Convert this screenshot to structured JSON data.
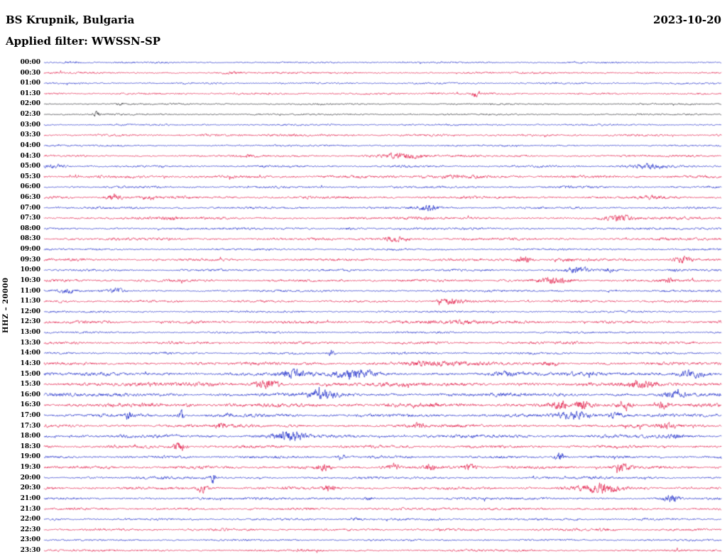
{
  "header": {
    "station": "BS Krupnik, Bulgaria",
    "filter_label": "Applied filter: WWSSN-SP",
    "date": "2023-10-20",
    "channel_scale": "HHZ – 20000"
  },
  "chart_data": {
    "type": "line",
    "subtype": "helicorder-seismogram",
    "title": "BS Krupnik, Bulgaria",
    "date": "2023-10-20",
    "filter": "WWSSN-SP",
    "ylabel": "HHZ – 20000",
    "xlabel": "",
    "row_duration_minutes": 30,
    "num_rows": 48,
    "grid": false,
    "legend": "none",
    "palette": {
      "blue": "#0a18c4",
      "red": "#e00d3c",
      "black": "#15151a"
    },
    "rows": [
      {
        "label": "00:00",
        "color": "blue",
        "base": 0.8,
        "events": [
          [
            0.04,
            0.008,
            1.2
          ]
        ]
      },
      {
        "label": "00:30",
        "color": "red",
        "base": 0.9,
        "events": [
          [
            0.28,
            0.01,
            1.0
          ],
          [
            0.88,
            0.01,
            0.8
          ]
        ]
      },
      {
        "label": "01:00",
        "color": "blue",
        "base": 0.8,
        "events": []
      },
      {
        "label": "01:30",
        "color": "red",
        "base": 0.9,
        "events": [
          [
            0.58,
            0.006,
            1.2
          ],
          [
            0.637,
            0.0035,
            3.5
          ]
        ]
      },
      {
        "label": "02:00",
        "color": "black",
        "base": 0.7,
        "events": [
          [
            0.113,
            0.004,
            1.5
          ]
        ]
      },
      {
        "label": "02:30",
        "color": "black",
        "base": 0.7,
        "events": [
          [
            0.077,
            0.0035,
            3.5
          ]
        ]
      },
      {
        "label": "03:00",
        "color": "blue",
        "base": 0.8,
        "events": []
      },
      {
        "label": "03:30",
        "color": "red",
        "base": 1.0,
        "events": [
          [
            0.35,
            0.02,
            0.8
          ]
        ]
      },
      {
        "label": "04:00",
        "color": "blue",
        "base": 0.8,
        "events": []
      },
      {
        "label": "04:30",
        "color": "red",
        "base": 1.0,
        "events": [
          [
            0.3,
            0.008,
            1.0
          ],
          [
            0.527,
            0.025,
            2.8
          ]
        ]
      },
      {
        "label": "05:00",
        "color": "blue",
        "base": 1.0,
        "events": [
          [
            0.015,
            0.012,
            1.8
          ],
          [
            0.89,
            0.02,
            2.2
          ]
        ]
      },
      {
        "label": "05:30",
        "color": "red",
        "base": 1.3,
        "events": [
          [
            0.6,
            0.05,
            0.6
          ]
        ]
      },
      {
        "label": "06:00",
        "color": "blue",
        "base": 1.0,
        "events": [
          [
            0.773,
            0.005,
            1.2
          ]
        ]
      },
      {
        "label": "06:30",
        "color": "red",
        "base": 1.2,
        "events": [
          [
            0.103,
            0.008,
            4.0
          ],
          [
            0.155,
            0.01,
            1.5
          ],
          [
            0.9,
            0.012,
            1.2
          ]
        ]
      },
      {
        "label": "07:00",
        "color": "blue",
        "base": 1.0,
        "events": [
          [
            0.569,
            0.011,
            3.2
          ]
        ]
      },
      {
        "label": "07:30",
        "color": "red",
        "base": 1.2,
        "events": [
          [
            0.187,
            0.008,
            1.6
          ],
          [
            0.847,
            0.014,
            3.2
          ]
        ]
      },
      {
        "label": "08:00",
        "color": "blue",
        "base": 1.0,
        "events": [
          [
            0.45,
            0.01,
            0.8
          ]
        ]
      },
      {
        "label": "08:30",
        "color": "red",
        "base": 1.2,
        "events": [
          [
            0.517,
            0.011,
            2.8
          ]
        ]
      },
      {
        "label": "09:00",
        "color": "blue",
        "base": 0.9,
        "events": []
      },
      {
        "label": "09:30",
        "color": "red",
        "base": 1.2,
        "events": [
          [
            0.71,
            0.008,
            3.8
          ],
          [
            0.773,
            0.008,
            1.6
          ],
          [
            0.943,
            0.009,
            4.2
          ]
        ]
      },
      {
        "label": "10:00",
        "color": "blue",
        "base": 1.0,
        "events": [
          [
            0.786,
            0.01,
            3.8
          ],
          [
            0.836,
            0.008,
            1.8
          ],
          [
            0.93,
            0.006,
            1.4
          ]
        ]
      },
      {
        "label": "10:30",
        "color": "red",
        "base": 1.2,
        "events": [
          [
            0.753,
            0.014,
            4.2
          ],
          [
            0.92,
            0.007,
            2.2
          ]
        ]
      },
      {
        "label": "11:00",
        "color": "blue",
        "base": 1.0,
        "events": [
          [
            0.035,
            0.008,
            2.2
          ],
          [
            0.108,
            0.008,
            2.2
          ]
        ]
      },
      {
        "label": "11:30",
        "color": "red",
        "base": 1.1,
        "events": [
          [
            0.6,
            0.012,
            3.2
          ]
        ]
      },
      {
        "label": "12:00",
        "color": "blue",
        "base": 0.9,
        "events": []
      },
      {
        "label": "12:30",
        "color": "red",
        "base": 1.3,
        "events": [
          [
            0.616,
            0.03,
            1.8
          ]
        ]
      },
      {
        "label": "13:00",
        "color": "blue",
        "base": 0.9,
        "events": []
      },
      {
        "label": "13:30",
        "color": "red",
        "base": 1.2,
        "events": [
          [
            0.784,
            0.01,
            1.3
          ]
        ]
      },
      {
        "label": "14:00",
        "color": "blue",
        "base": 1.0,
        "events": [
          [
            0.425,
            0.003,
            3.8
          ]
        ]
      },
      {
        "label": "14:30",
        "color": "red",
        "base": 1.4,
        "events": [
          [
            0.57,
            0.04,
            1.8
          ],
          [
            0.747,
            0.01,
            1.6
          ]
        ]
      },
      {
        "label": "15:00",
        "color": "blue",
        "base": 1.6,
        "events": [
          [
            0.365,
            0.014,
            3.6
          ],
          [
            0.46,
            0.02,
            4.2
          ],
          [
            0.68,
            0.02,
            1.5
          ],
          [
            0.957,
            0.015,
            3.8
          ]
        ]
      },
      {
        "label": "15:30",
        "color": "red",
        "base": 1.8,
        "events": [
          [
            0.33,
            0.012,
            4.6
          ],
          [
            0.88,
            0.015,
            2.6
          ]
        ]
      },
      {
        "label": "16:00",
        "color": "blue",
        "base": 1.6,
        "events": [
          [
            0.41,
            0.015,
            4.6
          ],
          [
            0.93,
            0.012,
            2.2
          ]
        ]
      },
      {
        "label": "16:30",
        "color": "red",
        "base": 1.8,
        "events": [
          [
            0.763,
            0.007,
            4.6
          ],
          [
            0.794,
            0.007,
            3.6
          ],
          [
            0.857,
            0.008,
            4.6
          ],
          [
            0.91,
            0.008,
            3.6
          ]
        ]
      },
      {
        "label": "17:00",
        "color": "blue",
        "base": 1.5,
        "events": [
          [
            0.124,
            0.003,
            4.5
          ],
          [
            0.202,
            0.003,
            5.5
          ],
          [
            0.27,
            0.004,
            1.8
          ],
          [
            0.785,
            0.018,
            4.2
          ],
          [
            0.842,
            0.008,
            2.5
          ]
        ]
      },
      {
        "label": "17:30",
        "color": "red",
        "base": 1.4,
        "events": [
          [
            0.26,
            0.004,
            3.8
          ],
          [
            0.553,
            0.005,
            2.8
          ],
          [
            0.92,
            0.009,
            3.0
          ]
        ]
      },
      {
        "label": "18:00",
        "color": "blue",
        "base": 1.5,
        "events": [
          [
            0.36,
            0.018,
            4.4
          ],
          [
            0.93,
            0.007,
            2.6
          ]
        ]
      },
      {
        "label": "18:30",
        "color": "red",
        "base": 1.3,
        "events": [
          [
            0.2,
            0.007,
            4.2
          ]
        ]
      },
      {
        "label": "19:00",
        "color": "blue",
        "base": 1.2,
        "events": [
          [
            0.438,
            0.004,
            2.8
          ],
          [
            0.761,
            0.005,
            5.5
          ]
        ]
      },
      {
        "label": "19:30",
        "color": "red",
        "base": 1.4,
        "events": [
          [
            0.412,
            0.007,
            3.8
          ],
          [
            0.517,
            0.007,
            3.2
          ],
          [
            0.569,
            0.006,
            2.8
          ],
          [
            0.627,
            0.007,
            3.8
          ],
          [
            0.852,
            0.008,
            4.2
          ]
        ]
      },
      {
        "label": "20:00",
        "color": "blue",
        "base": 1.1,
        "events": [
          [
            0.18,
            0.004,
            1.5
          ],
          [
            0.25,
            0.0025,
            6.5
          ]
        ]
      },
      {
        "label": "20:30",
        "color": "red",
        "base": 1.3,
        "events": [
          [
            0.234,
            0.006,
            3.8
          ],
          [
            0.422,
            0.006,
            3.2
          ],
          [
            0.82,
            0.022,
            4.4
          ]
        ]
      },
      {
        "label": "21:00",
        "color": "blue",
        "base": 1.1,
        "events": [
          [
            0.48,
            0.006,
            1.5
          ],
          [
            0.925,
            0.009,
            3.8
          ]
        ]
      },
      {
        "label": "21:30",
        "color": "red",
        "base": 1.1,
        "events": [
          [
            0.6,
            0.01,
            0.8
          ]
        ]
      },
      {
        "label": "22:00",
        "color": "blue",
        "base": 1.0,
        "events": [
          [
            0.46,
            0.01,
            1.3
          ]
        ]
      },
      {
        "label": "22:30",
        "color": "red",
        "base": 1.1,
        "events": [
          [
            0.83,
            0.01,
            1.0
          ]
        ]
      },
      {
        "label": "23:00",
        "color": "blue",
        "base": 0.9,
        "events": []
      },
      {
        "label": "23:30",
        "color": "red",
        "base": 1.0,
        "events": []
      }
    ]
  }
}
